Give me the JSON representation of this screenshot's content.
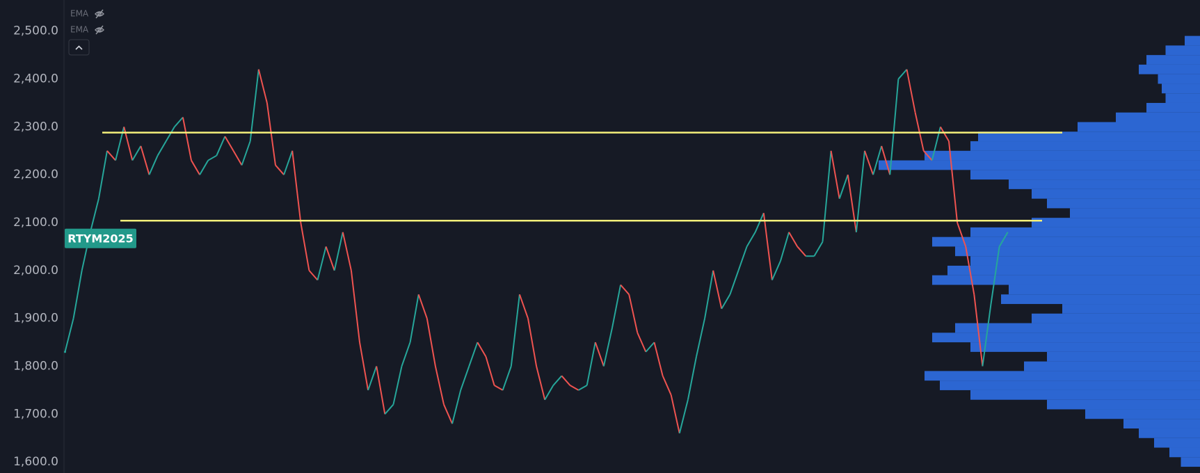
{
  "chart_data": {
    "type": "line",
    "symbol": "RTYM2025",
    "last_price": 2067,
    "indicators": [
      "EMA",
      "EMA"
    ],
    "up_color": "#26a69a",
    "down_color": "#ef5350",
    "values": [
      1830,
      1900,
      2000,
      2080,
      2150,
      2250,
      2230,
      2300,
      2230,
      2260,
      2200,
      2240,
      2270,
      2300,
      2320,
      2230,
      2200,
      2230,
      2240,
      2280,
      2250,
      2220,
      2270,
      2420,
      2350,
      2220,
      2200,
      2250,
      2100,
      2000,
      1980,
      2050,
      2000,
      2080,
      2000,
      1850,
      1750,
      1800,
      1700,
      1720,
      1800,
      1850,
      1950,
      1900,
      1800,
      1720,
      1680,
      1750,
      1800,
      1850,
      1820,
      1760,
      1750,
      1800,
      1950,
      1900,
      1800,
      1730,
      1760,
      1780,
      1760,
      1750,
      1760,
      1850,
      1800,
      1880,
      1970,
      1950,
      1870,
      1830,
      1850,
      1780,
      1740,
      1660,
      1730,
      1820,
      1900,
      2000,
      1920,
      1950,
      2000,
      2050,
      2080,
      2120,
      1980,
      2020,
      2080,
      2050,
      2030,
      2030,
      2060,
      2250,
      2150,
      2200,
      2080,
      2250,
      2200,
      2260,
      2200,
      2400,
      2420,
      2330,
      2250,
      2230,
      2300,
      2270,
      2100,
      2050,
      1950,
      1800,
      1930,
      2050,
      2080
    ],
    "hlines": [
      {
        "value": 2288,
        "color": "#f5f07a"
      },
      {
        "value": 2104,
        "color": "#f5f07a"
      }
    ],
    "volume_profile": {
      "color": "#2f6fe6",
      "prices": [
        2480,
        2460,
        2440,
        2420,
        2400,
        2380,
        2360,
        2340,
        2320,
        2300,
        2280,
        2260,
        2240,
        2220,
        2200,
        2180,
        2160,
        2140,
        2120,
        2100,
        2080,
        2060,
        2040,
        2020,
        2000,
        1980,
        1960,
        1940,
        1920,
        1900,
        1880,
        1860,
        1840,
        1820,
        1800,
        1780,
        1760,
        1740,
        1720,
        1700,
        1680,
        1660,
        1640,
        1620,
        1600
      ],
      "volumes": [
        20,
        45,
        70,
        80,
        55,
        50,
        45,
        70,
        110,
        160,
        290,
        300,
        360,
        420,
        300,
        250,
        220,
        200,
        170,
        220,
        300,
        350,
        320,
        300,
        330,
        350,
        250,
        260,
        180,
        220,
        320,
        350,
        300,
        200,
        230,
        360,
        340,
        300,
        200,
        150,
        100,
        80,
        60,
        40,
        25
      ]
    },
    "ylim": [
      1577,
      2565
    ],
    "yticks": [
      {
        "value": 1600,
        "label": "1,600.0"
      },
      {
        "value": 1700,
        "label": "1,700.0"
      },
      {
        "value": 1800,
        "label": "1,800.0"
      },
      {
        "value": 1900,
        "label": "1,900.0"
      },
      {
        "value": 2000,
        "label": "2,000.0"
      },
      {
        "value": 2100,
        "label": "2,100.0"
      },
      {
        "value": 2200,
        "label": "2,200.0"
      },
      {
        "value": 2300,
        "label": "2,300.0"
      },
      {
        "value": 2400,
        "label": "2,400.0"
      },
      {
        "value": 2500,
        "label": "2,500.0"
      }
    ]
  }
}
